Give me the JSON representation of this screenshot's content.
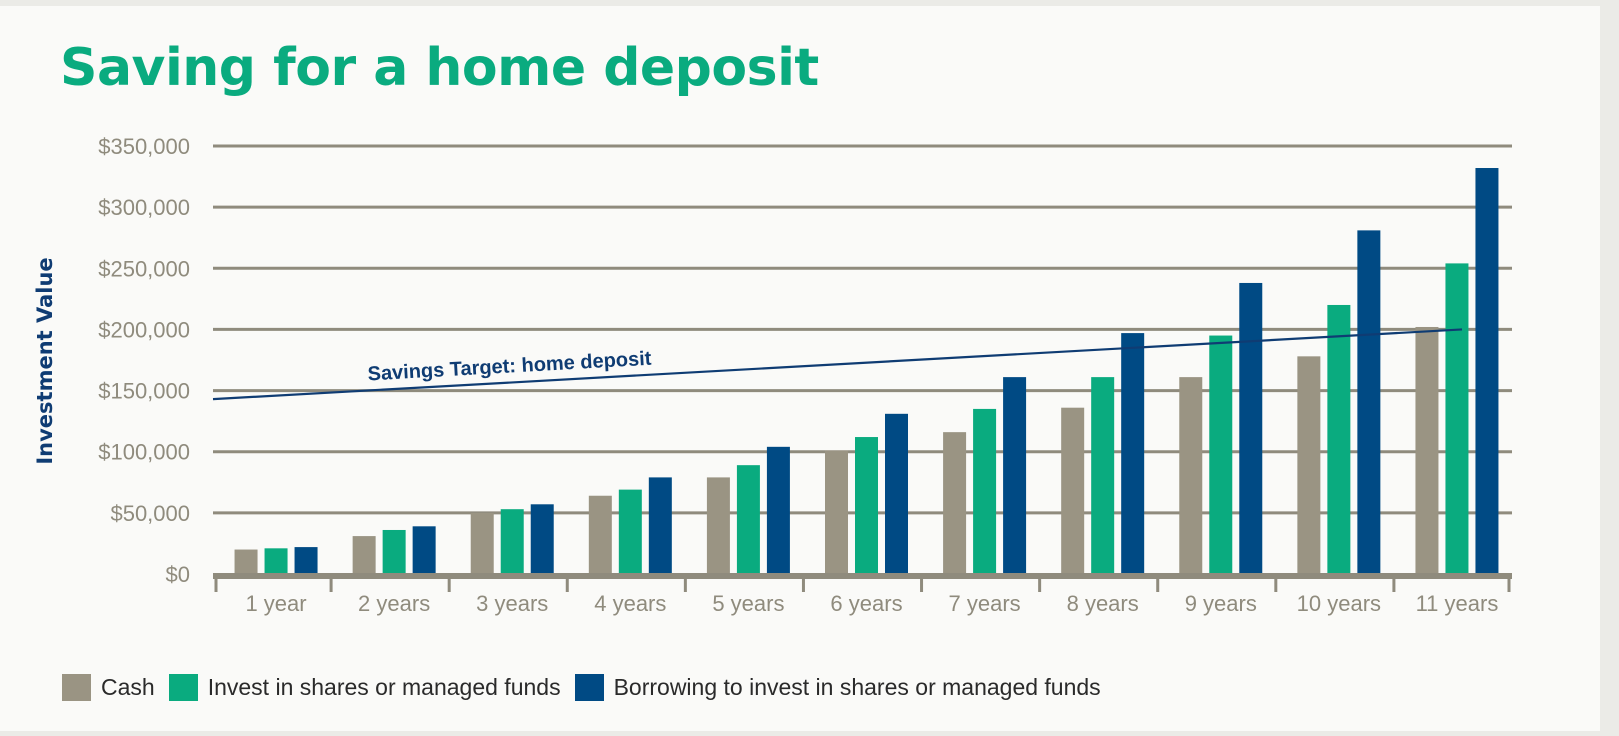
{
  "title": "Saving for a home deposit",
  "chart_data": {
    "type": "bar",
    "title": "Saving for a home deposit",
    "xlabel": "",
    "ylabel": "Investment Value",
    "ylim": [
      0,
      350000
    ],
    "y_ticks": [
      0,
      50000,
      100000,
      150000,
      200000,
      250000,
      300000,
      350000
    ],
    "y_tick_labels": [
      "$0",
      "$50,000",
      "$100,000",
      "$150,000",
      "$200,000",
      "$250,000",
      "$300,000",
      "$350,000"
    ],
    "categories": [
      "1 year",
      "2 years",
      "3 years",
      "4 years",
      "5 years",
      "6 years",
      "7 years",
      "8 years",
      "9 years",
      "10 years",
      "11 years"
    ],
    "series": [
      {
        "name": "Cash",
        "color": "#9a9483",
        "values": [
          20000,
          31000,
          50000,
          64000,
          79000,
          101000,
          116000,
          136000,
          161000,
          178000,
          202000
        ]
      },
      {
        "name": "Invest in shares or managed funds",
        "color": "#0aab7f",
        "values": [
          21000,
          36000,
          53000,
          69000,
          89000,
          112000,
          135000,
          161000,
          195000,
          220000,
          254000
        ]
      },
      {
        "name": "Borrowing to invest in shares or managed funds",
        "color": "#004a84",
        "values": [
          22000,
          39000,
          57000,
          79000,
          104000,
          131000,
          161000,
          197000,
          238000,
          281000,
          332000
        ]
      }
    ],
    "target_line": {
      "label": "Savings Target: home deposit",
      "start_value": 143000,
      "end_value": 200000,
      "color": "#0f3c73"
    },
    "grid": true,
    "legend_position": "bottom-left"
  },
  "colors": {
    "title": "#0aab7f",
    "axis_text": "#8f8b7d",
    "grid": "#8f8b7d",
    "ylabel": "#0f3c73"
  }
}
